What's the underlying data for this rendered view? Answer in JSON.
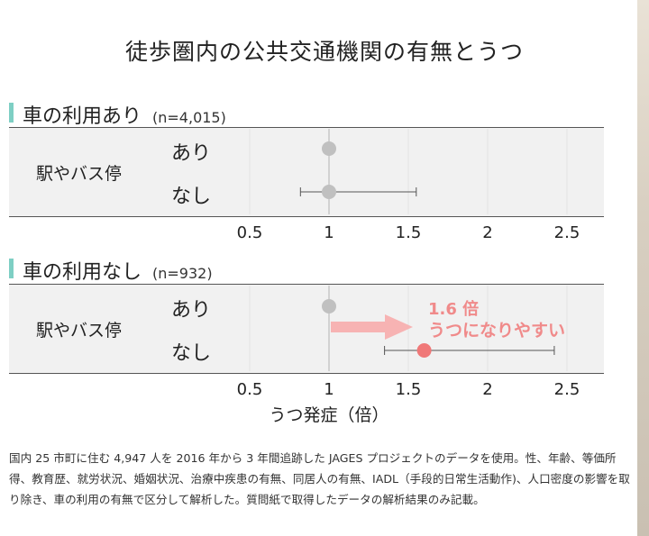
{
  "title": "徒歩圏内の公共交通機関の有無とうつ",
  "sections": [
    {
      "label": "車の利用あり",
      "n": "(n=4,015)",
      "group_label": "駅やバス停",
      "rows": [
        "あり",
        "なし"
      ]
    },
    {
      "label": "車の利用なし",
      "n": "(n=932)",
      "group_label": "駅やバス停",
      "rows": [
        "あり",
        "なし"
      ]
    }
  ],
  "annotation": {
    "ratio": "1.6 倍",
    "text": "うつになりやすい"
  },
  "axis_title": "うつ発症（倍）",
  "footnote": "国内 25 市町に住む 4,947 人を 2016 年から 3 年間追跡した JAGES プロジェクトのデータを使用。性、年齢、等価所得、教育歴、就労状況、婚姻状況、治療中疾患の有無、同居人の有無、IADL（手段的日常生活動作)、人口密度の影響を取り除き、車の利用の有無で区分して解析した。質問紙で取得したデータの解析結果のみ記載。",
  "colors": {
    "reference": "#c0c0c0",
    "highlight": "#f07878",
    "arrow": "#f7b3b3",
    "accent_bar": "#7ecfc4"
  },
  "chart_data": [
    {
      "type": "forest",
      "title": "車の利用あり",
      "x_ticks": [
        0.5,
        1,
        1.5,
        2,
        2.5
      ],
      "xlim": [
        0.25,
        2.75
      ],
      "reference_line": 1,
      "points": [
        {
          "label": "あり",
          "estimate": 1.0,
          "ci": null
        },
        {
          "label": "なし",
          "estimate": 1.0,
          "ci": [
            0.82,
            1.55
          ]
        }
      ]
    },
    {
      "type": "forest",
      "title": "車の利用なし",
      "x_ticks": [
        0.5,
        1,
        1.5,
        2,
        2.5
      ],
      "xlim": [
        0.25,
        2.75
      ],
      "reference_line": 1,
      "points": [
        {
          "label": "あり",
          "estimate": 1.0,
          "ci": null
        },
        {
          "label": "なし",
          "estimate": 1.6,
          "ci": [
            1.35,
            2.42
          ],
          "highlight": true
        }
      ]
    }
  ]
}
